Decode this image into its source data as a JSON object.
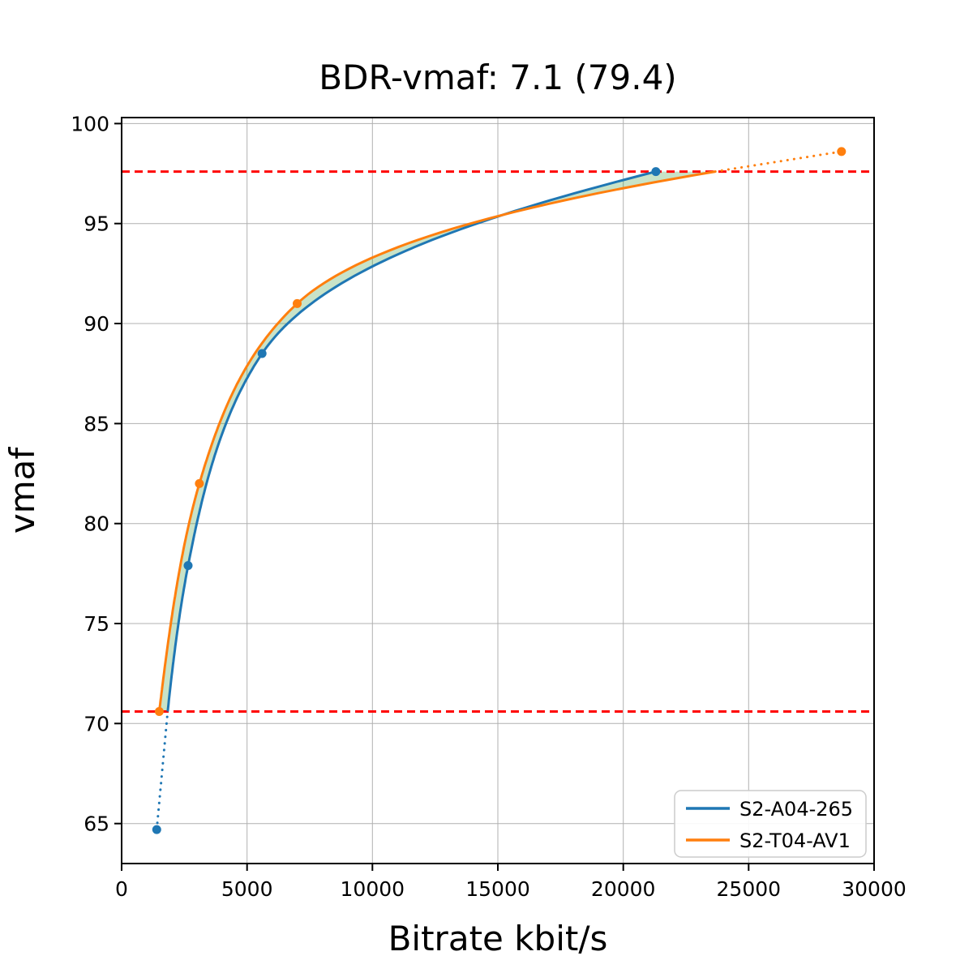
{
  "chart_data": {
    "type": "line",
    "title": "BDR-vmaf: 7.1 (79.4)",
    "xlabel": "Bitrate kbit/s",
    "ylabel": "vmaf",
    "xlim": [
      0,
      30000
    ],
    "ylim": [
      63.0,
      100.3
    ],
    "x_ticks": [
      0,
      5000,
      10000,
      15000,
      20000,
      25000,
      30000
    ],
    "y_ticks": [
      65,
      70,
      75,
      80,
      85,
      90,
      95,
      100
    ],
    "grid": true,
    "grid_color": "#b0b0b0",
    "legend_position": "lower right",
    "bd_interval": {
      "low_vmaf": 70.6,
      "high_vmaf": 97.6,
      "line_color": "#ff0000",
      "line_style": "dashed"
    },
    "fill_between": {
      "color": "#3a9a3a",
      "opacity": 0.28
    },
    "series": [
      {
        "name": "S2-A04-265",
        "color": "#1f77b4",
        "points": [
          {
            "bitrate_kbits": 1400,
            "vmaf": 64.7
          },
          {
            "bitrate_kbits": 2650,
            "vmaf": 77.9
          },
          {
            "bitrate_kbits": 5600,
            "vmaf": 88.5
          },
          {
            "bitrate_kbits": 21300,
            "vmaf": 97.6
          }
        ],
        "dotted_extension": "below-bd-interval"
      },
      {
        "name": "S2-T04-AV1",
        "color": "#ff7f0e",
        "points": [
          {
            "bitrate_kbits": 1500,
            "vmaf": 70.6
          },
          {
            "bitrate_kbits": 3100,
            "vmaf": 82.0
          },
          {
            "bitrate_kbits": 7000,
            "vmaf": 91.0
          },
          {
            "bitrate_kbits": 28700,
            "vmaf": 98.6
          }
        ],
        "dotted_extension": "above-bd-interval"
      }
    ]
  }
}
